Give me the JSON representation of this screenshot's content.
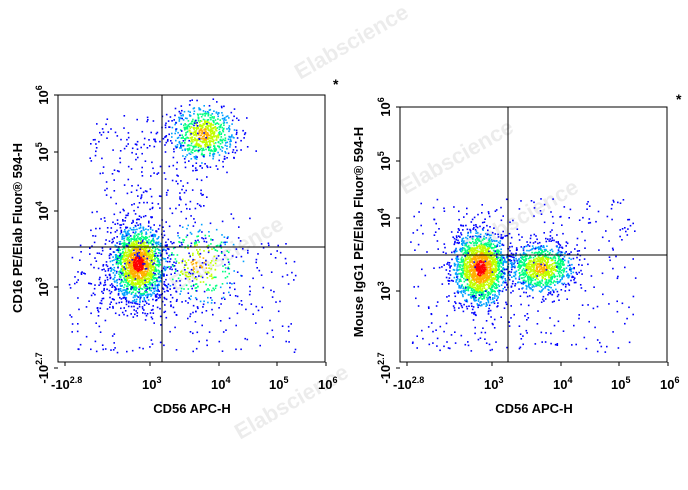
{
  "watermark": "Elabscience",
  "watermark_reg": "®",
  "chart_data": [
    {
      "type": "scatter",
      "subtype": "flow-cytometry-density-dot-plot",
      "xlabel": "CD56 APC-H",
      "ylabel": "CD16 PE/Elab Fluor® 594-H",
      "marker": "*",
      "scale": "biexponential",
      "x_ticks": [
        {
          "base": "-10",
          "exp": "2.8"
        },
        {
          "base": "10",
          "exp": "3"
        },
        {
          "base": "10",
          "exp": "4"
        },
        {
          "base": "10",
          "exp": "5"
        },
        {
          "base": "10",
          "exp": "6"
        }
      ],
      "y_ticks": [
        {
          "base": "-10",
          "exp": "2.7"
        },
        {
          "base": "10",
          "exp": "3"
        },
        {
          "base": "10",
          "exp": "4"
        },
        {
          "base": "10",
          "exp": "5"
        },
        {
          "base": "10",
          "exp": "6"
        }
      ],
      "quadrant_gate": {
        "x": 1600,
        "y": 2800
      },
      "populations": [
        {
          "name": "CD56- CD16-",
          "center": [
            400,
            900
          ],
          "density": "highest"
        },
        {
          "name": "CD56+ CD16+",
          "center": [
            6000,
            200000
          ],
          "density": "high"
        },
        {
          "name": "CD56+ CD16-",
          "center": [
            5000,
            900
          ],
          "density": "sparse"
        }
      ],
      "colormap": [
        "#0000ff",
        "#00a0ff",
        "#00ff80",
        "#c0ff00",
        "#ffb000",
        "#ff0000"
      ]
    },
    {
      "type": "scatter",
      "subtype": "flow-cytometry-density-dot-plot",
      "xlabel": "CD56 APC-H",
      "ylabel": "Mouse IgG1 PE/Elab Fluor® 594-H",
      "marker": "*",
      "scale": "biexponential",
      "x_ticks": [
        {
          "base": "-10",
          "exp": "2.8"
        },
        {
          "base": "10",
          "exp": "3"
        },
        {
          "base": "10",
          "exp": "4"
        },
        {
          "base": "10",
          "exp": "5"
        },
        {
          "base": "10",
          "exp": "6"
        }
      ],
      "y_ticks": [
        {
          "base": "-10",
          "exp": "2.7"
        },
        {
          "base": "10",
          "exp": "3"
        },
        {
          "base": "10",
          "exp": "4"
        },
        {
          "base": "10",
          "exp": "5"
        },
        {
          "base": "10",
          "exp": "6"
        }
      ],
      "quadrant_gate": {
        "x": 1600,
        "y": 2800
      },
      "populations": [
        {
          "name": "CD56-",
          "center": [
            400,
            900
          ],
          "density": "highest"
        },
        {
          "name": "CD56+",
          "center": [
            5000,
            900
          ],
          "density": "high"
        }
      ],
      "colormap": [
        "#0000ff",
        "#00a0ff",
        "#00ff80",
        "#c0ff00",
        "#ffb000",
        "#ff0000"
      ]
    }
  ]
}
